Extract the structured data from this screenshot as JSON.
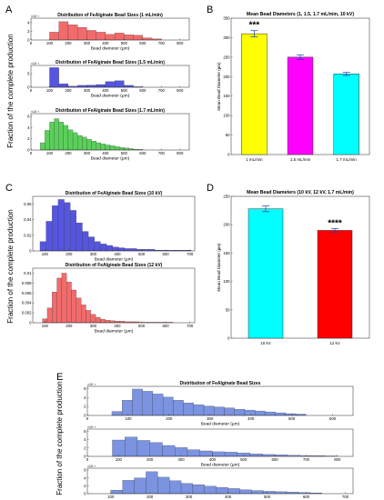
{
  "panels": [
    {
      "id": "A",
      "label": "A"
    },
    {
      "id": "B",
      "label": "B"
    },
    {
      "id": "C",
      "label": "C"
    },
    {
      "id": "D",
      "label": "D"
    },
    {
      "id": "E",
      "label": "E"
    }
  ],
  "ylabels": {
    "A": "Fraction of the complete production",
    "C": "Fraction of the complete production",
    "E": "Fraction of the complete production"
  },
  "chart_data": [
    {
      "id": "A1",
      "type": "bar",
      "panel": "A",
      "color": "#f26b6b",
      "title": "Distribution of FeAlginate Bead Sizes (1 mL/min)",
      "xlabel": "Bead diameter (µm)",
      "exponent": "×10⁻³",
      "xlim": [
        0,
        850
      ],
      "ylim": [
        0,
        5
      ],
      "xticks": [
        0,
        100,
        200,
        300,
        400,
        500,
        600,
        700,
        800
      ],
      "yticks": [
        0,
        2,
        4
      ],
      "bin_edges": [
        100,
        150,
        200,
        250,
        300,
        350,
        400,
        450,
        500,
        550,
        600,
        650,
        700
      ],
      "values": [
        1.8,
        4.2,
        3.5,
        2.9,
        2.2,
        1.8,
        1.3,
        1.6,
        1.2,
        1.1,
        0.5,
        0.25
      ]
    },
    {
      "id": "A2",
      "type": "bar",
      "panel": "A",
      "color": "#5555e0",
      "title": "Distribution of FeAlginate Bead Sizes (1.5 mL/min)",
      "xlabel": "Bead diameter (µm)",
      "exponent": "×10⁻³",
      "xlim": [
        0,
        850
      ],
      "ylim": [
        0,
        8
      ],
      "xticks": [
        0,
        100,
        200,
        300,
        400,
        500,
        600,
        700,
        800
      ],
      "yticks": [
        0,
        5
      ],
      "bin_edges": [
        100,
        150,
        200,
        250,
        300,
        350,
        400,
        450,
        500,
        550,
        600
      ],
      "values": [
        7.2,
        1.3,
        0.4,
        0.7,
        0.8,
        1.0,
        2.1,
        2.4,
        0.7,
        0.2
      ]
    },
    {
      "id": "A3",
      "type": "bar",
      "panel": "A",
      "color": "#5ad05a",
      "title": "Distribution of FeAlginate Bead Sizes (1.7 mL/min)",
      "xlabel": "Bead diameter (µm)",
      "exponent": "×10⁻³",
      "xlim": [
        0,
        850
      ],
      "ylim": [
        0,
        6.5
      ],
      "xticks": [
        0,
        100,
        200,
        300,
        400,
        500,
        600,
        700,
        800
      ],
      "yticks": [
        0,
        2,
        4,
        6
      ],
      "bin_edges": [
        50,
        75,
        100,
        125,
        150,
        175,
        200,
        225,
        250,
        275,
        300,
        325,
        350,
        375,
        400,
        425,
        450,
        475,
        500,
        525,
        550,
        575,
        600
      ],
      "values": [
        1.3,
        3.5,
        5.0,
        5.6,
        5.0,
        4.4,
        3.6,
        3.1,
        2.6,
        2.3,
        1.9,
        1.6,
        1.3,
        1.1,
        0.9,
        0.75,
        0.6,
        0.45,
        0.35,
        0.25,
        0.15,
        0.1
      ]
    },
    {
      "id": "B",
      "type": "bar",
      "panel": "B",
      "style": "categorical",
      "title": "Mean Bead Diameters (1, 1.5, 1.7 mL/min, 10 kV)",
      "ylabel": "Mean Bead Diameter (µm)",
      "ylim": [
        0,
        350
      ],
      "yticks": [
        0,
        50,
        100,
        150,
        200,
        250,
        300,
        350
      ],
      "categories": [
        "1 mL/min",
        "1.5 mL/min",
        "1.7 mL/min"
      ],
      "values": [
        310,
        250,
        207
      ],
      "errors": [
        8,
        6,
        4
      ],
      "colors": [
        "#ffff00",
        "#ff00ff",
        "#00ffff"
      ],
      "significance": [
        "***",
        "",
        ""
      ]
    },
    {
      "id": "C1",
      "type": "bar",
      "panel": "C",
      "color": "#5555e0",
      "title": "Distribution of FeAlginate Bead Sizes (10 kV)",
      "xlabel": "Bead diameter (µm)",
      "xlim": [
        50,
        720
      ],
      "ylim": [
        0,
        0.07
      ],
      "xticks": [
        100,
        200,
        300,
        400,
        500,
        600,
        700
      ],
      "yticks": [
        0,
        0.02,
        0.04,
        0.06
      ],
      "bin_edges": [
        80,
        105,
        130,
        155,
        180,
        205,
        230,
        255,
        280,
        305,
        330,
        355,
        380,
        405,
        430,
        455,
        480,
        505,
        530,
        555,
        580,
        605,
        630,
        655,
        680,
        705
      ],
      "values": [
        0.012,
        0.038,
        0.058,
        0.066,
        0.062,
        0.052,
        0.036,
        0.025,
        0.018,
        0.012,
        0.009,
        0.007,
        0.005,
        0.004,
        0.003,
        0.003,
        0.002,
        0.002,
        0.002,
        0.001,
        0.001,
        0.001,
        0.001,
        0.001,
        0.001
      ]
    },
    {
      "id": "C2",
      "type": "bar",
      "panel": "C",
      "color": "#f26b6b",
      "title": "Distribution of FeAlginate Bead Sizes (12 kV)",
      "xlabel": "Bead diameter (µm)",
      "xlim": [
        50,
        720
      ],
      "ylim": [
        0,
        0.011
      ],
      "xticks": [
        100,
        200,
        300,
        400,
        500,
        600,
        700
      ],
      "yticks": [
        0,
        0.002,
        0.004,
        0.006,
        0.008,
        0.01
      ],
      "bin_edges": [
        90,
        110,
        130,
        150,
        170,
        190,
        210,
        230,
        250,
        270,
        290,
        310,
        330,
        350,
        370,
        390,
        410,
        430,
        450,
        470,
        490,
        510,
        530,
        550,
        570,
        590,
        610,
        630
      ],
      "values": [
        0.0008,
        0.003,
        0.0062,
        0.009,
        0.01,
        0.0082,
        0.0066,
        0.005,
        0.0036,
        0.0025,
        0.0017,
        0.0011,
        0.0007,
        0.0005,
        0.0004,
        0.0003,
        0.0003,
        0.0002,
        0.0002,
        0.0002,
        0.0001,
        0.0001,
        0.0001,
        0.0001,
        0.0001,
        0.0001,
        0.0001
      ]
    },
    {
      "id": "D",
      "type": "bar",
      "panel": "D",
      "style": "categorical",
      "title": "Mean Bead Diameters (10 kV, 12 kV, 1.7 mL/min)",
      "ylabel": "Mean Bead Diameter (µm)",
      "ylim": [
        0,
        250
      ],
      "yticks": [
        0,
        50,
        100,
        150,
        200,
        250
      ],
      "categories": [
        "10 kV",
        "12 kV"
      ],
      "values": [
        228,
        190
      ],
      "errors": [
        5,
        3
      ],
      "colors": [
        "#00ffff",
        "#ff0000"
      ],
      "significance": [
        "",
        "****"
      ]
    },
    {
      "id": "E1",
      "type": "bar",
      "panel": "E",
      "color": "#7b93e0",
      "title": "Distribution of FeAlginate Bead Sizes",
      "xlabel": "Bead diameter (µm)",
      "exponent": "×10⁻³",
      "xlim": [
        0,
        650
      ],
      "ylim": [
        0,
        6.5
      ],
      "xticks": [
        0,
        100,
        200,
        300,
        400,
        500,
        600
      ],
      "yticks": [
        0,
        2,
        4,
        6
      ],
      "bin_edges": [
        60,
        85,
        110,
        135,
        160,
        185,
        210,
        235,
        260,
        285,
        310,
        335,
        360,
        385,
        410,
        435,
        460,
        485,
        510,
        535
      ],
      "values": [
        0.9,
        3.4,
        5.9,
        5.4,
        4.8,
        4.1,
        3.4,
        2.8,
        2.4,
        2.1,
        1.9,
        1.7,
        1.4,
        1.2,
        1.0,
        0.8,
        0.6,
        0.4,
        0.3
      ]
    },
    {
      "id": "E2",
      "type": "bar",
      "panel": "E",
      "color": "#7b93e0",
      "xlabel": "Bead diameter (µm)",
      "exponent": "×10⁻³",
      "xlim": [
        0,
        850
      ],
      "ylim": [
        0,
        6.5
      ],
      "xticks": [
        0,
        100,
        200,
        300,
        400,
        500,
        600,
        700,
        800
      ],
      "yticks": [
        0,
        2,
        4,
        6
      ],
      "bin_edges": [
        80,
        120,
        160,
        200,
        240,
        280,
        320,
        360,
        400,
        440,
        480,
        520,
        560,
        600,
        640,
        680,
        720,
        760,
        800
      ],
      "values": [
        3.9,
        4.6,
        3.8,
        3.3,
        2.6,
        2.1,
        1.6,
        1.3,
        1.1,
        1.0,
        0.8,
        0.6,
        0.45,
        0.35,
        0.25,
        0.2,
        0.15,
        0.1
      ]
    },
    {
      "id": "E3",
      "type": "bar",
      "panel": "E",
      "color": "#7b93e0",
      "xlabel": "Bead diameter (µm)",
      "exponent": "×10⁻³",
      "xlim": [
        40,
        720
      ],
      "ylim": [
        0,
        6.5
      ],
      "xticks": [
        100,
        200,
        300,
        400,
        500,
        600,
        700
      ],
      "yticks": [
        0,
        2,
        4,
        6
      ],
      "bin_edges": [
        100,
        130,
        160,
        190,
        220,
        250,
        280,
        310,
        340,
        370,
        400,
        430,
        460,
        490,
        520,
        550,
        580,
        610,
        640
      ],
      "values": [
        0.9,
        3.4,
        4.0,
        5.6,
        4.2,
        3.3,
        2.6,
        2.3,
        1.9,
        1.6,
        1.3,
        1.0,
        0.8,
        0.6,
        0.5,
        0.4,
        0.3,
        0.2
      ]
    }
  ]
}
